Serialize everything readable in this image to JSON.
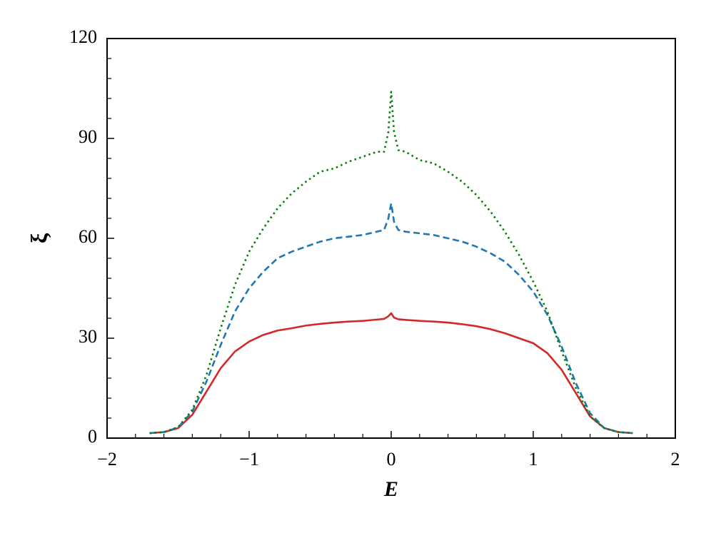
{
  "chart_data": {
    "type": "line",
    "xlabel": "E",
    "ylabel": "ξ",
    "x": [
      -1.7,
      -1.6,
      -1.5,
      -1.4,
      -1.3,
      -1.2,
      -1.1,
      -1.0,
      -0.9,
      -0.8,
      -0.7,
      -0.6,
      -0.5,
      -0.4,
      -0.3,
      -0.2,
      -0.1,
      -0.05,
      -0.02,
      0,
      0.02,
      0.05,
      0.1,
      0.2,
      0.3,
      0.4,
      0.5,
      0.6,
      0.7,
      0.8,
      0.9,
      1.0,
      1.1,
      1.2,
      1.3,
      1.4,
      1.5,
      1.6,
      1.7
    ],
    "series": [
      {
        "color": "#d62728",
        "dash": "solid",
        "values": [
          1.5,
          1.8,
          3,
          7,
          14,
          21,
          26,
          29,
          31,
          32.3,
          33,
          33.8,
          34.3,
          34.7,
          35,
          35.2,
          35.6,
          35.8,
          36.6,
          37.5,
          36.2,
          35.7,
          35.5,
          35.2,
          35,
          34.7,
          34.2,
          33.6,
          32.7,
          31.5,
          30,
          28.5,
          25.5,
          20.5,
          13.5,
          6.5,
          3,
          1.8,
          1.5
        ]
      },
      {
        "color": "#1f77b4",
        "dash": "dashed",
        "values": [
          1.5,
          1.8,
          3.2,
          8,
          17,
          28,
          38,
          45,
          50,
          54,
          56,
          57.5,
          59,
          60,
          60.5,
          61,
          62,
          62.5,
          66,
          70.5,
          65,
          62.5,
          62,
          61.5,
          61,
          60,
          59,
          57.5,
          55.5,
          53,
          49,
          44,
          37,
          27.5,
          16.5,
          7.5,
          3,
          1.8,
          1.5
        ]
      },
      {
        "color": "#008000",
        "dash": "dotted",
        "values": [
          1.5,
          1.8,
          3.3,
          8.5,
          19,
          33,
          46,
          56,
          63,
          69,
          73.5,
          77,
          80,
          81,
          83,
          84.5,
          86,
          86,
          92,
          104,
          92,
          86.5,
          86,
          83.5,
          82.5,
          80,
          77,
          73,
          68,
          62,
          55,
          47,
          38,
          26,
          15,
          6.5,
          3,
          1.8,
          1.5
        ]
      }
    ],
    "xlim": [
      -2,
      2
    ],
    "xticks": [
      {
        "value": -2,
        "label": "−2"
      },
      {
        "value": -1,
        "label": "−1"
      },
      0,
      1,
      2
    ],
    "xminorticks": [
      -1.8,
      -1.6,
      -1.4,
      -1.2,
      -0.8,
      -0.6,
      -0.4,
      -0.2,
      0.2,
      0.4,
      0.6,
      0.8,
      1.2,
      1.4,
      1.6,
      1.8
    ],
    "ylim": [
      0,
      120
    ],
    "yticks": [
      0,
      30,
      60,
      90,
      120
    ],
    "yminorticks": [
      6,
      12,
      18,
      24,
      36,
      42,
      48,
      54,
      66,
      72,
      78,
      84,
      96,
      102,
      108,
      114
    ],
    "grid": false
  }
}
